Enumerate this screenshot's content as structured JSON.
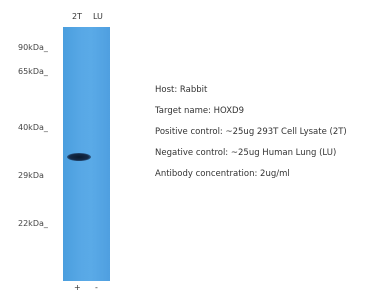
{
  "lanes": [
    "2T",
    "LU"
  ],
  "markers": [
    "90kDa_",
    "65kDa_",
    "40kDa_",
    "29kDa",
    "22kDa_"
  ],
  "info": [
    "Host: Rabbit",
    "Target name: HOXD9",
    "Positive control: ~25ug 293T Cell Lysate (2T)",
    "Negative control: ~25ug Human Lung (LU)",
    "Antibody concentration: 2ug/ml"
  ],
  "bottom_signs": [
    "+",
    "-"
  ]
}
